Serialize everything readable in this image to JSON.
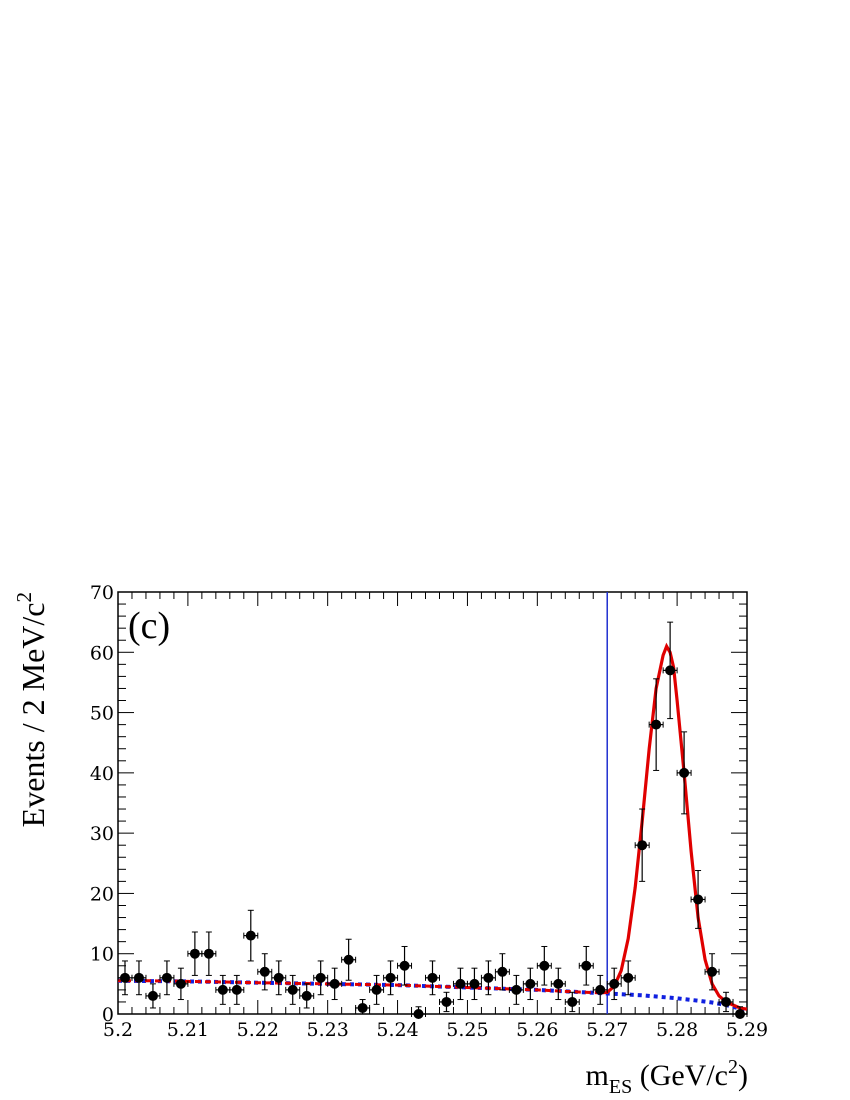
{
  "chart_data": {
    "type": "scatter",
    "panel_label": "(c)",
    "xlabel": {
      "main": "m",
      "sub": "ES",
      "unit_pre": " (GeV/c",
      "unit_sup": "2",
      "unit_post": ")"
    },
    "ylabel": {
      "main": "Events / 2 MeV/c",
      "sup": "2"
    },
    "xlim": [
      5.2,
      5.29
    ],
    "ylim": [
      0,
      70
    ],
    "x_ticks": [
      "5.2",
      "5.21",
      "5.22",
      "5.23",
      "5.24",
      "5.25",
      "5.26",
      "5.27",
      "5.28",
      "5.29"
    ],
    "y_ticks": [
      "0",
      "10",
      "20",
      "30",
      "40",
      "50",
      "60",
      "70"
    ],
    "x_tick_values": [
      5.2,
      5.21,
      5.22,
      5.23,
      5.24,
      5.25,
      5.26,
      5.27,
      5.28,
      5.29
    ],
    "y_tick_values": [
      0,
      10,
      20,
      30,
      40,
      50,
      60,
      70
    ],
    "vertical_line_x": 5.27,
    "data_points": {
      "x": [
        5.201,
        5.203,
        5.205,
        5.207,
        5.209,
        5.211,
        5.213,
        5.215,
        5.217,
        5.219,
        5.221,
        5.223,
        5.225,
        5.227,
        5.229,
        5.231,
        5.233,
        5.235,
        5.237,
        5.239,
        5.241,
        5.243,
        5.245,
        5.247,
        5.249,
        5.251,
        5.253,
        5.255,
        5.257,
        5.259,
        5.261,
        5.263,
        5.265,
        5.267,
        5.269,
        5.271,
        5.273,
        5.275,
        5.277,
        5.279,
        5.281,
        5.283,
        5.285,
        5.287,
        5.289
      ],
      "y": [
        6,
        6,
        3,
        6,
        5,
        10,
        10,
        4,
        4,
        13,
        7,
        6,
        4,
        3,
        6,
        5,
        9,
        1,
        4,
        6,
        8,
        0,
        6,
        2,
        5,
        5,
        6,
        7,
        4,
        5,
        8,
        5,
        2,
        8,
        4,
        5,
        6,
        28,
        48,
        57,
        40,
        19,
        7,
        2,
        0
      ],
      "y_err": [
        2.8,
        2.8,
        2.0,
        2.8,
        2.6,
        3.6,
        3.6,
        2.4,
        2.4,
        4.2,
        3.0,
        2.8,
        2.4,
        2.0,
        2.8,
        2.6,
        3.4,
        1.4,
        2.4,
        2.8,
        3.2,
        1.2,
        2.8,
        1.6,
        2.6,
        2.6,
        2.8,
        3.0,
        2.4,
        2.6,
        3.2,
        2.6,
        1.6,
        3.2,
        2.4,
        2.6,
        2.8,
        6.0,
        7.6,
        8.0,
        6.8,
        4.8,
        3.0,
        1.6,
        1.2
      ],
      "x_err": 0.001
    },
    "total_fit": {
      "color": "#e00000",
      "x": [
        5.2,
        5.205,
        5.21,
        5.215,
        5.22,
        5.225,
        5.23,
        5.235,
        5.24,
        5.245,
        5.25,
        5.255,
        5.26,
        5.265,
        5.269,
        5.27,
        5.271,
        5.272,
        5.273,
        5.274,
        5.275,
        5.276,
        5.277,
        5.278,
        5.2785,
        5.279,
        5.2795,
        5.28,
        5.281,
        5.282,
        5.283,
        5.284,
        5.285,
        5.286,
        5.287,
        5.288,
        5.289,
        5.29
      ],
      "y": [
        5.5,
        5.5,
        5.4,
        5.3,
        5.2,
        5.1,
        5.0,
        4.9,
        4.8,
        4.6,
        4.4,
        4.2,
        4.0,
        3.7,
        3.5,
        3.6,
        4.6,
        7.2,
        12.5,
        21.0,
        32.0,
        44.0,
        54.0,
        59.5,
        61.0,
        60.0,
        57.5,
        52.0,
        40.0,
        27.0,
        16.0,
        9.0,
        5.0,
        3.0,
        2.0,
        1.5,
        1.0,
        0.8
      ]
    },
    "background_fit": {
      "color": "#1020e0",
      "x": [
        5.2,
        5.21,
        5.22,
        5.23,
        5.24,
        5.25,
        5.26,
        5.265,
        5.27,
        5.275,
        5.28,
        5.283,
        5.285,
        5.287,
        5.288,
        5.289,
        5.29
      ],
      "y": [
        5.5,
        5.4,
        5.2,
        5.0,
        4.8,
        4.4,
        4.0,
        3.7,
        3.4,
        3.1,
        2.6,
        2.2,
        1.9,
        1.5,
        1.2,
        0.9,
        0.5
      ]
    },
    "vertical_line_color": "#2030d0"
  }
}
